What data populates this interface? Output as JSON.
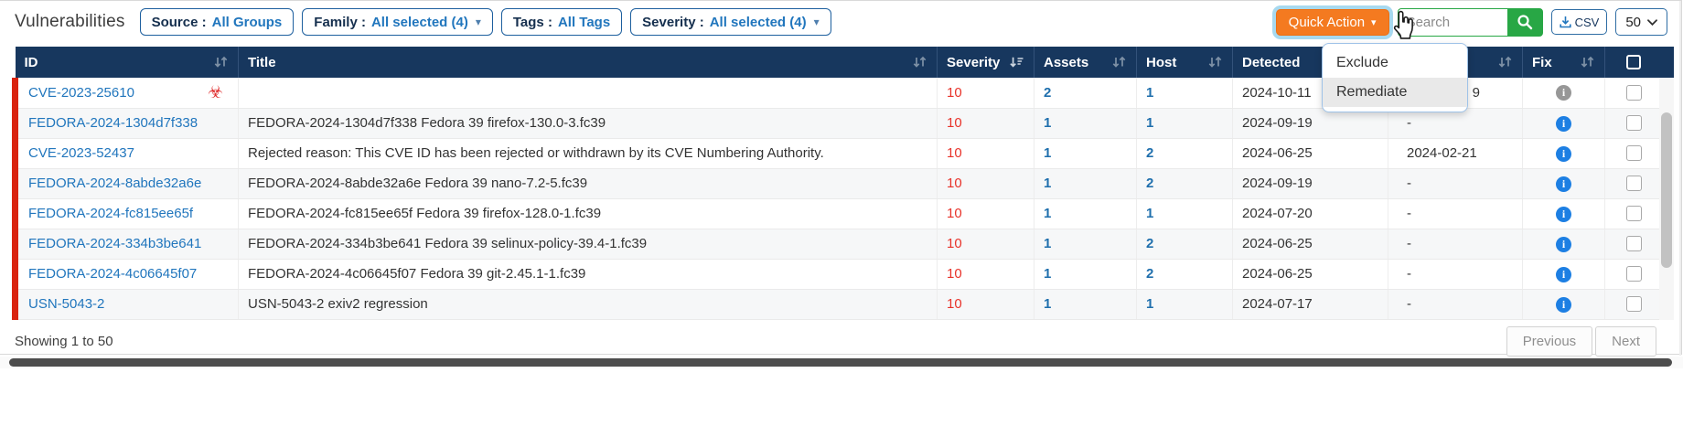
{
  "page": {
    "title": "Vulnerabilities"
  },
  "filters": [
    {
      "label": "Source :",
      "value": "All Groups",
      "caret": false
    },
    {
      "label": "Family :",
      "value": "All selected (4)",
      "caret": true
    },
    {
      "label": "Tags :",
      "value": "All Tags",
      "caret": false
    },
    {
      "label": "Severity :",
      "value": "All selected (4)",
      "caret": true
    }
  ],
  "toolbar": {
    "quick_action": "Quick Action",
    "search_placeholder": "Search",
    "csv": "CSV",
    "page_size": "50"
  },
  "menu": {
    "items": [
      {
        "label": "Exclude",
        "highlighted": false
      },
      {
        "label": "Remediate",
        "highlighted": true
      }
    ]
  },
  "table": {
    "headers": [
      {
        "label": "ID",
        "sort": "inactive"
      },
      {
        "label": "Title",
        "sort": "inactive"
      },
      {
        "label": "Severity",
        "sort": "desc"
      },
      {
        "label": "Assets",
        "sort": "inactive"
      },
      {
        "label": "Host",
        "sort": "inactive"
      },
      {
        "label": "Detected",
        "sort": "inactive"
      },
      {
        "label": "",
        "sort": "inactive"
      },
      {
        "label": "Fix",
        "sort": "inactive"
      },
      {
        "label": "",
        "sort": "select_all"
      }
    ],
    "rows": [
      {
        "id": "CVE-2023-25610",
        "malware_icon": true,
        "title": "",
        "severity": "10",
        "assets": "2",
        "host": "1",
        "detected": "2024-10-11",
        "fixed": "9",
        "fix_info": "gray"
      },
      {
        "id": "FEDORA-2024-1304d7f338",
        "malware_icon": false,
        "title": "FEDORA-2024-1304d7f338 Fedora 39 firefox-130.0-3.fc39",
        "severity": "10",
        "assets": "1",
        "host": "1",
        "detected": "2024-09-19",
        "fixed": "-",
        "fix_info": "blue"
      },
      {
        "id": "CVE-2023-52437",
        "malware_icon": false,
        "title": "Rejected reason: This CVE ID has been rejected or withdrawn by its CVE Numbering Authority.",
        "severity": "10",
        "assets": "1",
        "host": "2",
        "detected": "2024-06-25",
        "fixed": "2024-02-21",
        "fix_info": "blue"
      },
      {
        "id": "FEDORA-2024-8abde32a6e",
        "malware_icon": false,
        "title": "FEDORA-2024-8abde32a6e Fedora 39 nano-7.2-5.fc39",
        "severity": "10",
        "assets": "1",
        "host": "2",
        "detected": "2024-09-19",
        "fixed": "-",
        "fix_info": "blue"
      },
      {
        "id": "FEDORA-2024-fc815ee65f",
        "malware_icon": false,
        "title": "FEDORA-2024-fc815ee65f Fedora 39 firefox-128.0-1.fc39",
        "severity": "10",
        "assets": "1",
        "host": "1",
        "detected": "2024-07-20",
        "fixed": "-",
        "fix_info": "blue"
      },
      {
        "id": "FEDORA-2024-334b3be641",
        "malware_icon": false,
        "title": "FEDORA-2024-334b3be641 Fedora 39 selinux-policy-39.4-1.fc39",
        "severity": "10",
        "assets": "1",
        "host": "2",
        "detected": "2024-06-25",
        "fixed": "-",
        "fix_info": "blue"
      },
      {
        "id": "FEDORA-2024-4c06645f07",
        "malware_icon": false,
        "title": "FEDORA-2024-4c06645f07 Fedora 39 git-2.45.1-1.fc39",
        "severity": "10",
        "assets": "1",
        "host": "2",
        "detected": "2024-06-25",
        "fixed": "-",
        "fix_info": "blue"
      },
      {
        "id": "USN-5043-2",
        "malware_icon": false,
        "title": "USN-5043-2 exiv2 regression",
        "severity": "10",
        "assets": "1",
        "host": "1",
        "detected": "2024-07-17",
        "fixed": "-",
        "fix_info": "blue"
      }
    ]
  },
  "footer": {
    "showing": "Showing 1 to 50",
    "previous": "Previous",
    "next": "Next"
  },
  "colors": {
    "accent_orange": "#f47a20",
    "success_green": "#28a745",
    "header_navy": "#17375e",
    "link_blue": "#2176bd",
    "severity_red": "#e8332a",
    "row_marker_red": "#d9230f",
    "info_blue": "#1d7fe3",
    "info_gray": "#979797"
  }
}
